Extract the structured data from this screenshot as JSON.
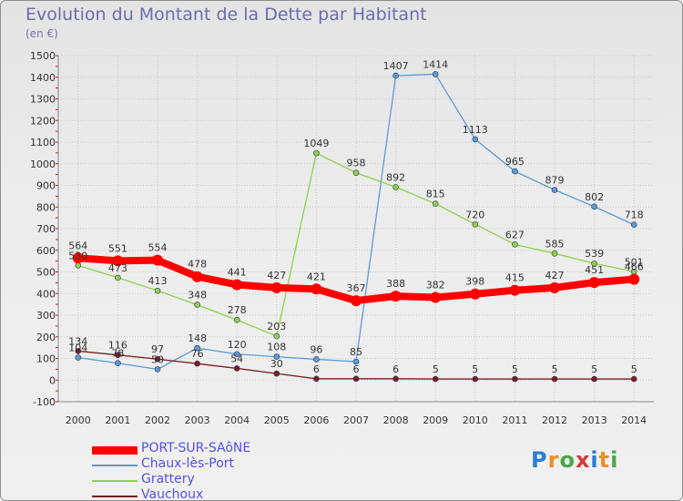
{
  "title": "Evolution du Montant de la Dette par Habitant",
  "unit_label": "(en €)",
  "logo_text": "Proxiti",
  "colors": {
    "title": "#6b6bb2",
    "legend_text": "#5252e6",
    "grid": "#c8c8c8",
    "axis": "#888888"
  },
  "chart_data": {
    "type": "line",
    "title": "Evolution du Montant de la Dette par Habitant",
    "ylabel": "(en €)",
    "xlabel": "",
    "ylim": [
      -100,
      1500
    ],
    "y_ticks": [
      -100,
      0,
      100,
      200,
      300,
      400,
      500,
      600,
      700,
      800,
      900,
      1000,
      1100,
      1200,
      1300,
      1400,
      1500
    ],
    "categories": [
      "2000",
      "2001",
      "2002",
      "2003",
      "2004",
      "2005",
      "2006",
      "2007",
      "2008",
      "2009",
      "2010",
      "2011",
      "2012",
      "2013",
      "2014"
    ],
    "grid": true,
    "legend_position": "bottom-left",
    "series": [
      {
        "name": "PORT-SUR-SAôNE",
        "color": "#ff0000",
        "emphasis": true,
        "values": [
          564,
          551,
          554,
          478,
          441,
          427,
          421,
          367,
          388,
          382,
          398,
          415,
          427,
          451,
          466
        ]
      },
      {
        "name": "Chaux-lès-Port",
        "color": "#5b9bd5",
        "values": [
          104,
          78,
          50,
          148,
          120,
          108,
          96,
          85,
          1407,
          1414,
          1113,
          965,
          879,
          802,
          718
        ]
      },
      {
        "name": "Grattery",
        "color": "#8cd34b",
        "values": [
          530,
          473,
          413,
          348,
          278,
          203,
          1049,
          958,
          892,
          815,
          720,
          627,
          585,
          539,
          501
        ]
      },
      {
        "name": "Vauchoux",
        "color": "#7a1e1e",
        "values": [
          134,
          116,
          97,
          76,
          54,
          30,
          6,
          6,
          6,
          5,
          5,
          5,
          5,
          5,
          5
        ]
      }
    ]
  }
}
